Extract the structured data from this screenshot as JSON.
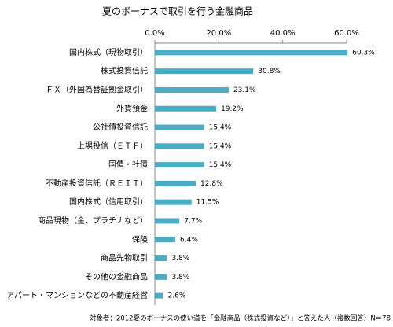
{
  "chart_data": {
    "type": "bar",
    "orientation": "horizontal",
    "title": "夏のボーナスで取引を行う金融商品",
    "categories": [
      "国内株式（現物取引）",
      "株式投資信託",
      "ＦＸ（外国為替証拠金取引）",
      "外貨預金",
      "公社債投資信託",
      "上場投信（ＥＴＦ）",
      "国債・社債",
      "不動産投資信託（ＲＥＩＴ）",
      "国内株式（信用取引）",
      "商品現物（金、プラチナなど）",
      "保険",
      "商品先物取引",
      "その他の金融商品",
      "アパート・マンションなどの不動産経営"
    ],
    "values": [
      60.3,
      30.8,
      23.1,
      19.2,
      15.4,
      15.4,
      15.4,
      12.8,
      11.5,
      7.7,
      6.4,
      3.8,
      3.8,
      2.6
    ],
    "value_labels": [
      "60.3%",
      "30.8%",
      "23.1%",
      "19.2%",
      "15.4%",
      "15.4%",
      "15.4%",
      "12.8%",
      "11.5%",
      "7.7%",
      "6.4%",
      "3.8%",
      "3.8%",
      "2.6%"
    ],
    "color": "#4aacc5",
    "xlim": [
      0,
      60
    ],
    "xticks": [
      {
        "value": 0,
        "label": "0.0%"
      },
      {
        "value": 20,
        "label": "20.0%"
      },
      {
        "value": 40,
        "label": "40.0%"
      },
      {
        "value": 60,
        "label": "60.0%"
      }
    ],
    "grid": false,
    "note": "対象者：2012夏のボーナスの使い道を「金融商品（株式投資など）」と答えた人（複数回答）N＝78"
  }
}
